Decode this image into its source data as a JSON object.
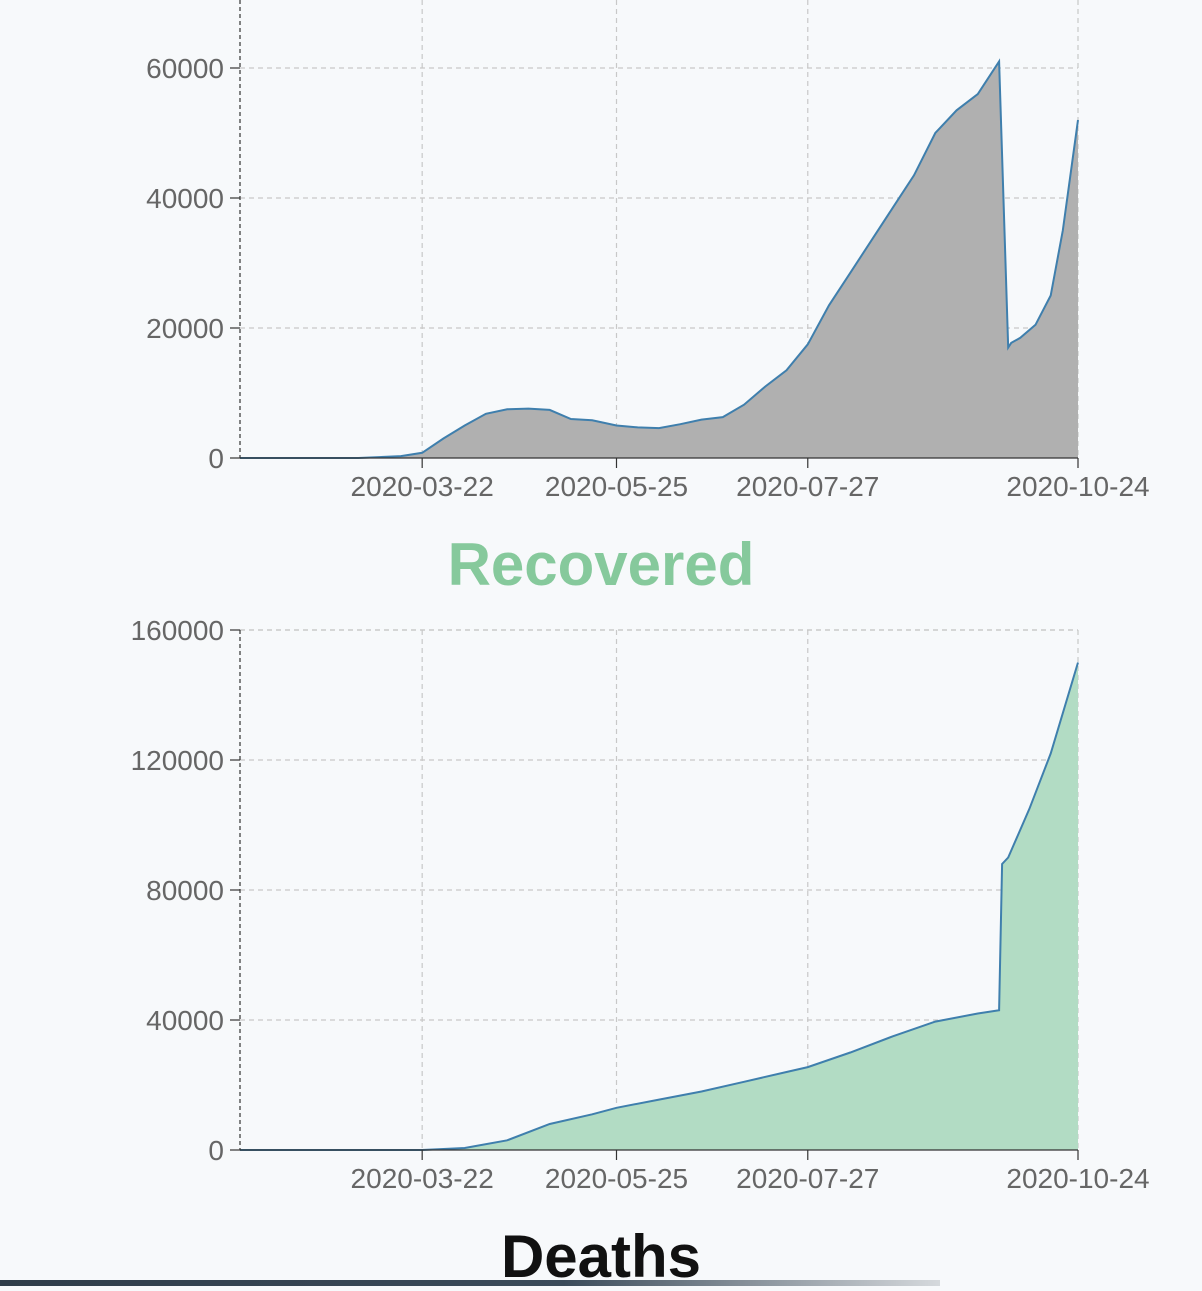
{
  "sections": {
    "recovered_title": "Recovered",
    "deaths_title": "Deaths"
  },
  "colors": {
    "line": "#3f7fad",
    "fill_active": "#b0b0b0",
    "fill_recovered": "#b2dcc4",
    "recovered_title": "#86c99c"
  },
  "chart_data": [
    {
      "type": "area",
      "title": "",
      "xlabel": "",
      "ylabel": "",
      "x_ticks": [
        "2020-03-22",
        "2020-05-25",
        "2020-07-27",
        "2020-10-24"
      ],
      "y_ticks": [
        0,
        20000,
        40000,
        60000
      ],
      "ylim": [
        0,
        60000
      ],
      "grid": true,
      "series": [
        {
          "x": [
            "2020-01-22",
            "2020-03-01",
            "2020-03-15",
            "2020-03-22",
            "2020-03-29",
            "2020-04-05",
            "2020-04-12",
            "2020-04-19",
            "2020-04-26",
            "2020-05-03",
            "2020-05-10",
            "2020-05-17",
            "2020-05-25",
            "2020-06-01",
            "2020-06-08",
            "2020-06-15",
            "2020-06-22",
            "2020-06-29",
            "2020-07-06",
            "2020-07-13",
            "2020-07-20",
            "2020-07-27",
            "2020-08-03",
            "2020-08-10",
            "2020-08-17",
            "2020-08-24",
            "2020-08-31",
            "2020-09-07",
            "2020-09-14",
            "2020-09-21",
            "2020-09-28",
            "2020-10-01",
            "2020-10-02",
            "2020-10-05",
            "2020-10-10",
            "2020-10-15",
            "2020-10-19",
            "2020-10-24"
          ],
          "values": [
            0,
            0,
            300,
            800,
            3000,
            5000,
            6800,
            7500,
            7600,
            7400,
            6000,
            5800,
            5000,
            4700,
            4600,
            5200,
            5900,
            6300,
            8200,
            11000,
            13500,
            17500,
            23500,
            28500,
            33500,
            38500,
            43500,
            50000,
            53500,
            56000,
            61000,
            17000,
            17700,
            18500,
            20500,
            25000,
            35000,
            52000
          ]
        }
      ]
    },
    {
      "type": "area",
      "title": "",
      "xlabel": "",
      "ylabel": "",
      "x_ticks": [
        "2020-03-22",
        "2020-05-25",
        "2020-07-27",
        "2020-10-24"
      ],
      "y_ticks": [
        0,
        40000,
        80000,
        120000,
        160000
      ],
      "ylim": [
        0,
        160000
      ],
      "grid": true,
      "series": [
        {
          "x": [
            "2020-01-22",
            "2020-03-22",
            "2020-04-05",
            "2020-04-19",
            "2020-05-03",
            "2020-05-17",
            "2020-05-25",
            "2020-06-08",
            "2020-06-22",
            "2020-07-06",
            "2020-07-20",
            "2020-07-27",
            "2020-08-10",
            "2020-08-24",
            "2020-09-07",
            "2020-09-21",
            "2020-09-28",
            "2020-09-29",
            "2020-10-01",
            "2020-10-08",
            "2020-10-15",
            "2020-10-24"
          ],
          "values": [
            0,
            0,
            600,
            3000,
            8000,
            11000,
            13000,
            15500,
            18000,
            21000,
            24000,
            25500,
            30000,
            35000,
            39500,
            42000,
            43000,
            88000,
            90000,
            105000,
            122000,
            150000
          ]
        }
      ]
    }
  ]
}
